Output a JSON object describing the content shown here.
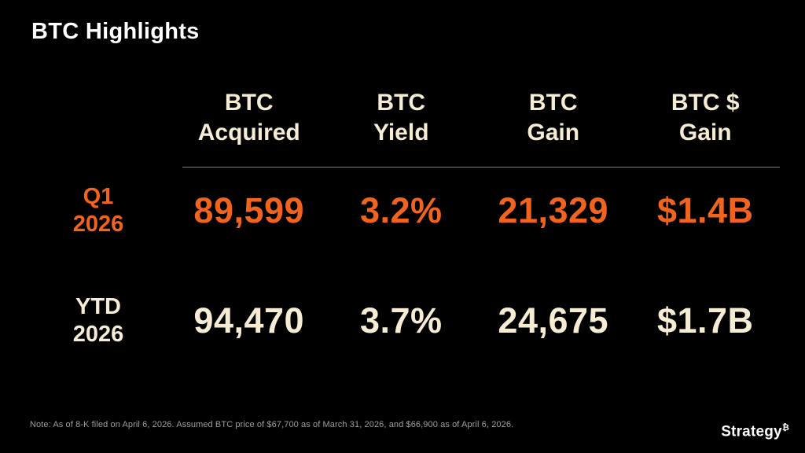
{
  "slide": {
    "title": "BTC Highlights",
    "footnote": "Note: As of 8-K filed on April 6, 2026. Assumed BTC price of $67,700 as of March 31, 2026, and $66,900 as of April 6, 2026.",
    "logo": {
      "name": "Strategy",
      "symbol": "₿"
    }
  },
  "colors": {
    "background": "#000000",
    "title_text": "#ffffff",
    "cream_text": "#f6ecd4",
    "orange_accent": "#f2641e",
    "divider_gray": "#7f7f7f",
    "footnote_gray": "#9e9e9e"
  },
  "chart_data": {
    "type": "table",
    "title": "BTC Highlights",
    "columns": [
      {
        "label": "BTC Acquired",
        "line1": "BTC",
        "line2": "Acquired"
      },
      {
        "label": "BTC Yield",
        "line1": "BTC",
        "line2": "Yield"
      },
      {
        "label": "BTC Gain",
        "line1": "BTC",
        "line2": "Gain"
      },
      {
        "label": "BTC $ Gain",
        "line1": "BTC $",
        "line2": "Gain"
      }
    ],
    "rows": [
      {
        "label": "Q1 2026",
        "line1": "Q1",
        "line2": "2026",
        "values": [
          "89,599",
          "3.2%",
          "21,329",
          "$1.4B"
        ],
        "color": "orange",
        "highlight": true
      },
      {
        "label": "YTD 2026",
        "line1": "YTD",
        "line2": "2026",
        "values": [
          "94,470",
          "3.7%",
          "24,675",
          "$1.7B"
        ],
        "color": "cream",
        "highlight": false
      }
    ],
    "footnote": "Note: As of 8-K filed on April 6, 2026. Assumed BTC price of $67,700 as of March 31, 2026, and $66,900 as of April 6, 2026."
  }
}
